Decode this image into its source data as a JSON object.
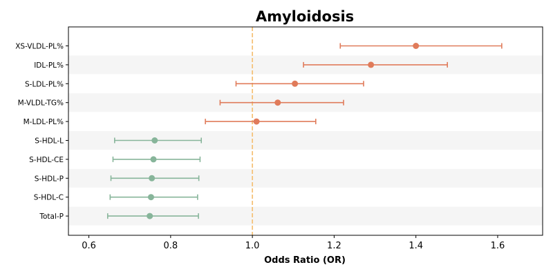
{
  "chart_data": {
    "type": "forest",
    "title": "Amyloidosis",
    "xlabel": "Odds Ratio (OR)",
    "ylabel": "",
    "xlim": [
      0.55,
      1.71
    ],
    "xticks": [
      0.6,
      0.8,
      1.0,
      1.2,
      1.4,
      1.6
    ],
    "xtick_labels": [
      "0.6",
      "0.8",
      "1.0",
      "1.2",
      "1.4",
      "1.6"
    ],
    "reference_line": 1.0,
    "reference_color": "#f5c27a",
    "colors": {
      "risk": "#e07b5a",
      "protective": "#87b59a",
      "band": "#f5f5f5"
    },
    "rows": [
      {
        "label": "XS-VLDL-PL%",
        "or": 1.4,
        "lower": 1.215,
        "upper": 1.61,
        "group": "risk"
      },
      {
        "label": "IDL-PL%",
        "or": 1.29,
        "lower": 1.125,
        "upper": 1.477,
        "group": "risk"
      },
      {
        "label": "S-LDL-PL%",
        "or": 1.104,
        "lower": 0.96,
        "upper": 1.272,
        "group": "risk"
      },
      {
        "label": "M-VLDL-TG%",
        "or": 1.062,
        "lower": 0.921,
        "upper": 1.223,
        "group": "risk"
      },
      {
        "label": "M-LDL-PL%",
        "or": 1.01,
        "lower": 0.885,
        "upper": 1.155,
        "group": "risk"
      },
      {
        "label": "S-HDL-L",
        "or": 0.761,
        "lower": 0.663,
        "upper": 0.875,
        "group": "protective"
      },
      {
        "label": "S-HDL-CE",
        "or": 0.758,
        "lower": 0.659,
        "upper": 0.872,
        "group": "protective"
      },
      {
        "label": "S-HDL-P",
        "or": 0.754,
        "lower": 0.654,
        "upper": 0.869,
        "group": "protective"
      },
      {
        "label": "S-HDL-C",
        "or": 0.752,
        "lower": 0.652,
        "upper": 0.866,
        "group": "protective"
      },
      {
        "label": "Total-P",
        "or": 0.749,
        "lower": 0.646,
        "upper": 0.868,
        "group": "protective"
      }
    ]
  }
}
